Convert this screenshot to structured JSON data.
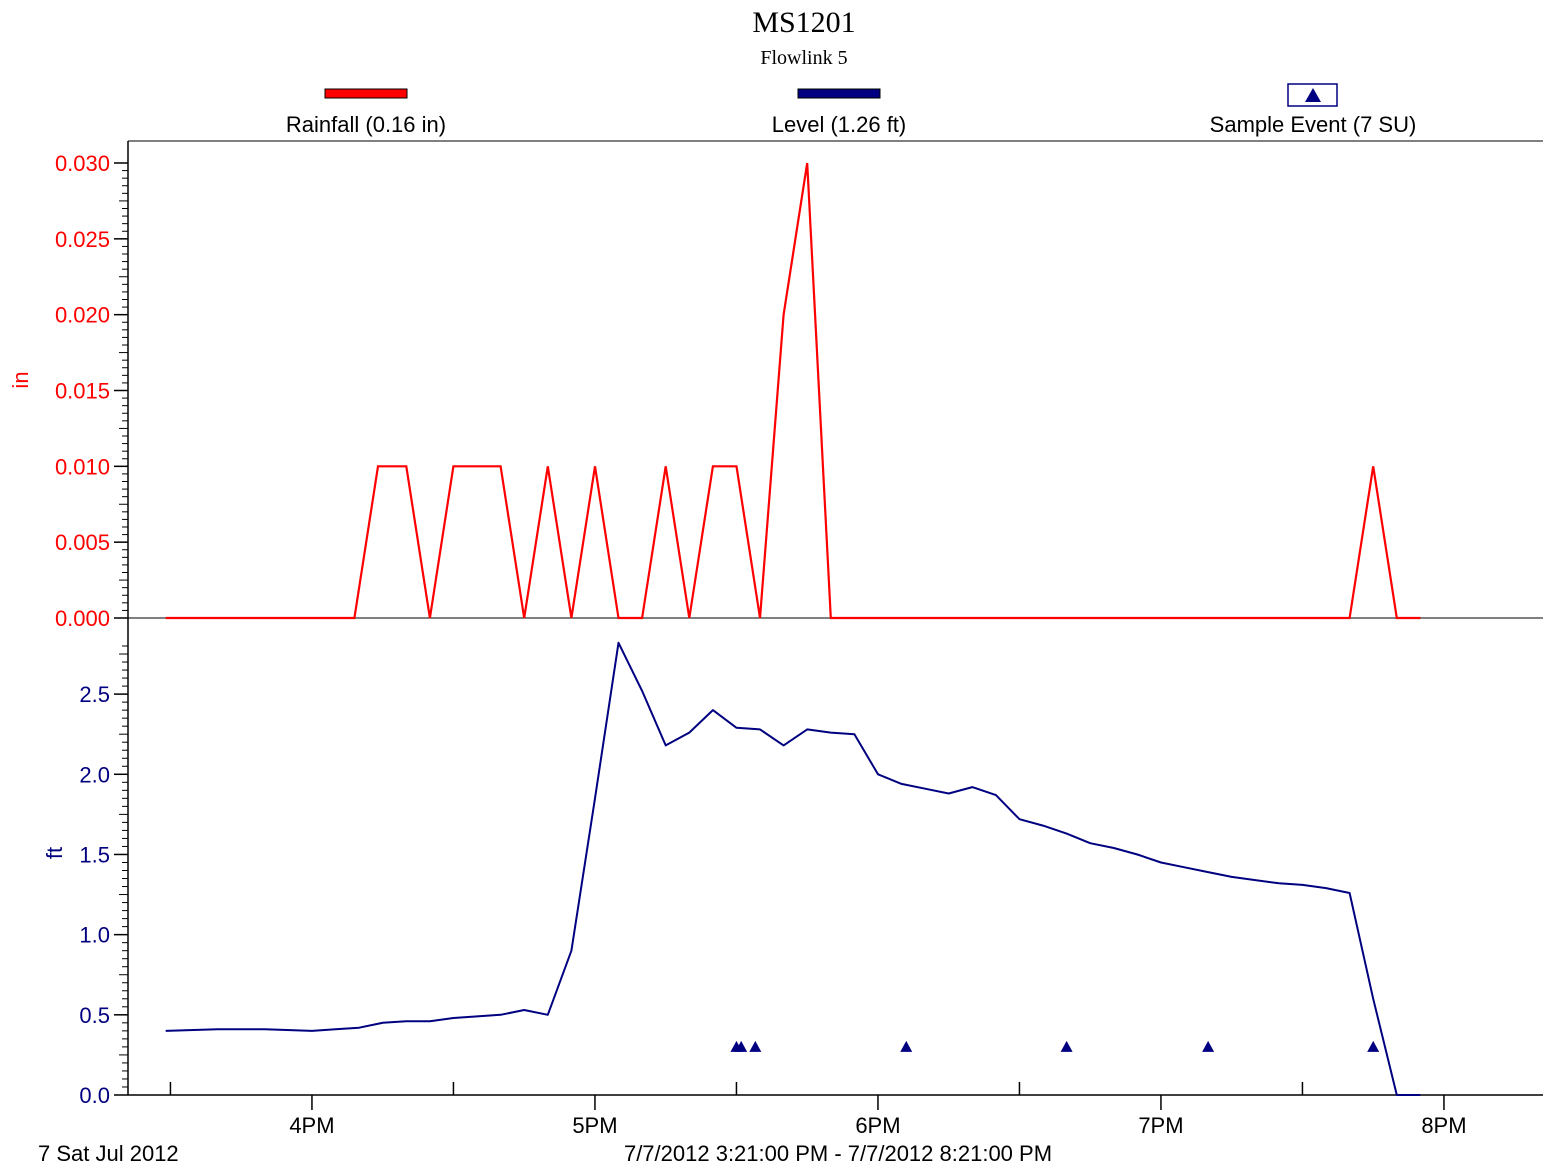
{
  "chart_data": {
    "type": "line",
    "title": "MS1201",
    "subtitle": "Flowlink 5",
    "footer_left": "7 Sat Jul 2012",
    "footer_center": "7/7/2012 3:21:00 PM - 7/7/2012 8:21:00 PM",
    "x_range": [
      "3:21 PM",
      "8:21 PM"
    ],
    "x_ticks": [
      "4PM",
      "5PM",
      "6PM",
      "7PM",
      "8PM"
    ],
    "colors": {
      "rainfall": "#ff0000",
      "level": "#000080",
      "sample": "#000080"
    },
    "legend": {
      "rainfall": "Rainfall (0.16 in)",
      "level": "Level (1.26 ft)",
      "sample": "Sample Event (7 SU)"
    },
    "rainfall": {
      "name": "Rainfall (0.16 in)",
      "ylabel": "in",
      "ylim": [
        0,
        0.03
      ],
      "y_ticks": [
        "0.000",
        "0.005",
        "0.010",
        "0.015",
        "0.020",
        "0.025",
        "0.030"
      ],
      "x": [
        "3:29 PM",
        "4:09 PM",
        "4:14 PM",
        "4:20 PM",
        "4:25 PM",
        "4:30 PM",
        "4:35 PM",
        "4:40 PM",
        "4:45 PM",
        "4:50 PM",
        "4:55 PM",
        "5:00 PM",
        "5:05 PM",
        "5:10 PM",
        "5:15 PM",
        "5:20 PM",
        "5:25 PM",
        "5:30 PM",
        "5:35 PM",
        "5:40 PM",
        "5:45 PM",
        "5:50 PM",
        "5:55 PM",
        "6:00 PM",
        "7:40 PM",
        "7:45 PM",
        "7:50 PM",
        "7:55 PM"
      ],
      "values": [
        0,
        0,
        0.01,
        0.01,
        0,
        0.01,
        0.01,
        0.01,
        0,
        0.01,
        0,
        0.01,
        0,
        0,
        0.01,
        0,
        0.01,
        0.01,
        0,
        0.02,
        0.03,
        0,
        0,
        0,
        0,
        0.01,
        0,
        0
      ]
    },
    "level": {
      "name": "Level (1.26 ft)",
      "ylabel": "ft",
      "ylim": [
        0,
        2.8
      ],
      "y_ticks": [
        "0.0",
        "0.5",
        "1.0",
        "1.5",
        "2.0",
        "2.5"
      ],
      "x": [
        "3:29 PM",
        "3:40 PM",
        "3:50 PM",
        "4:00 PM",
        "4:05 PM",
        "4:10 PM",
        "4:15 PM",
        "4:20 PM",
        "4:25 PM",
        "4:30 PM",
        "4:35 PM",
        "4:40 PM",
        "4:45 PM",
        "4:50 PM",
        "4:55 PM",
        "5:00 PM",
        "5:05 PM",
        "5:10 PM",
        "5:15 PM",
        "5:20 PM",
        "5:25 PM",
        "5:30 PM",
        "5:35 PM",
        "5:40 PM",
        "5:45 PM",
        "5:50 PM",
        "5:55 PM",
        "6:00 PM",
        "6:05 PM",
        "6:10 PM",
        "6:15 PM",
        "6:20 PM",
        "6:25 PM",
        "6:30 PM",
        "6:35 PM",
        "6:40 PM",
        "6:45 PM",
        "6:50 PM",
        "6:55 PM",
        "7:00 PM",
        "7:05 PM",
        "7:10 PM",
        "7:15 PM",
        "7:20 PM",
        "7:25 PM",
        "7:30 PM",
        "7:35 PM",
        "7:40 PM",
        "7:45 PM",
        "7:50 PM",
        "7:55 PM"
      ],
      "values": [
        0.4,
        0.41,
        0.41,
        0.4,
        0.41,
        0.42,
        0.45,
        0.46,
        0.46,
        0.48,
        0.49,
        0.5,
        0.53,
        0.5,
        0.9,
        1.85,
        2.82,
        2.52,
        2.18,
        2.26,
        2.4,
        2.29,
        2.28,
        2.18,
        2.28,
        2.26,
        2.25,
        2.0,
        1.94,
        1.91,
        1.88,
        1.92,
        1.87,
        1.72,
        1.68,
        1.63,
        1.57,
        1.54,
        1.5,
        1.45,
        1.42,
        1.39,
        1.36,
        1.34,
        1.32,
        1.31,
        1.29,
        1.26,
        0.6,
        0.0,
        0.0
      ]
    },
    "sample_events": {
      "name": "Sample Event (7 SU)",
      "x": [
        "5:30 PM",
        "5:31 PM",
        "5:34 PM",
        "6:06 PM",
        "6:40 PM",
        "7:10 PM",
        "7:45 PM"
      ],
      "y": [
        0.3,
        0.3,
        0.3,
        0.3,
        0.3,
        0.3,
        0.3
      ]
    }
  }
}
